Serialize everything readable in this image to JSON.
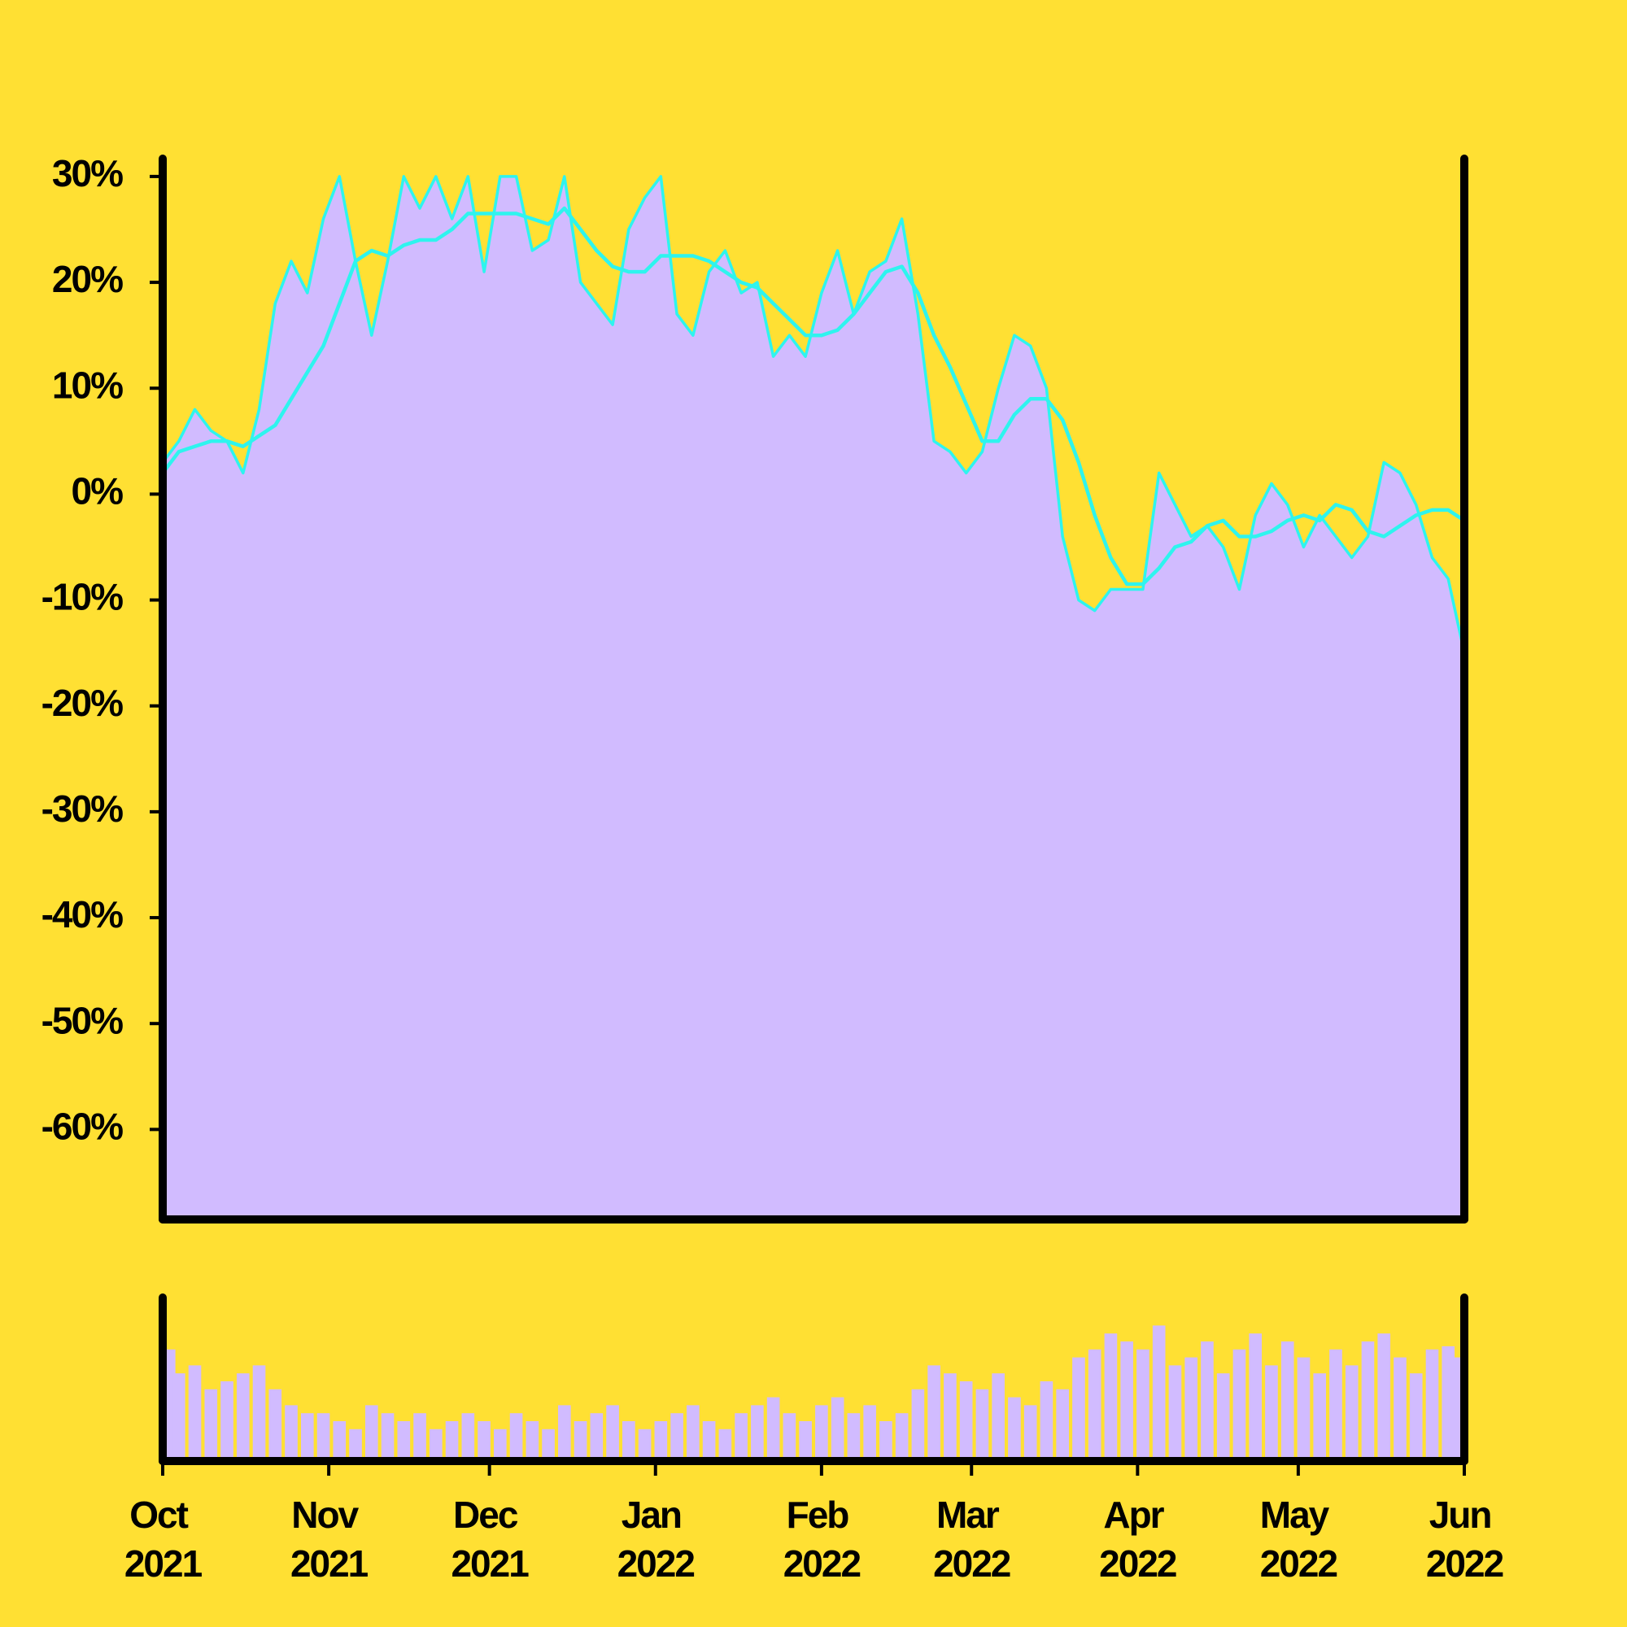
{
  "chart_data": [
    {
      "type": "area",
      "x": [
        0,
        3,
        6,
        9,
        12,
        15,
        18,
        21,
        24,
        27,
        30,
        33,
        36,
        39,
        42,
        45,
        48,
        51,
        54,
        57,
        60,
        63,
        66,
        69,
        72,
        75,
        78,
        81,
        84,
        87,
        90,
        93,
        96,
        99,
        102,
        105,
        108,
        111,
        114,
        117,
        120,
        123,
        126,
        129,
        132,
        135,
        138,
        141,
        144,
        147,
        150,
        153,
        156,
        159,
        162,
        165,
        168,
        171,
        174,
        177,
        180,
        183,
        186,
        189,
        192,
        195,
        198,
        201,
        204,
        207,
        210,
        213,
        216,
        219,
        222,
        225,
        228,
        231,
        234,
        237,
        240,
        243
      ],
      "xlim": [
        0,
        243
      ],
      "ylim": [
        -68.5,
        31.3
      ],
      "yticks": [
        {
          "value": 30,
          "label": "30%"
        },
        {
          "value": 20,
          "label": "20%"
        },
        {
          "value": 10,
          "label": "10%"
        },
        {
          "value": 0,
          "label": "0%"
        },
        {
          "value": -10,
          "label": "-10%"
        },
        {
          "value": -20,
          "label": "-20%"
        },
        {
          "value": -30,
          "label": "-30%"
        },
        {
          "value": -40,
          "label": "-40%"
        },
        {
          "value": -50,
          "label": "-50%"
        },
        {
          "value": -60,
          "label": "-60%"
        }
      ],
      "fill": "#d1bbff",
      "series": [
        {
          "color": "#2ef4ee",
          "values": [
            3,
            5,
            8,
            6,
            5,
            2,
            8,
            18,
            22,
            19,
            26,
            30,
            22,
            15,
            22,
            30,
            27,
            30,
            26,
            30,
            21,
            30,
            30,
            23,
            24,
            30,
            20,
            18,
            16,
            25,
            28,
            30,
            17,
            15,
            21,
            23,
            19,
            20,
            13,
            15,
            13,
            19,
            23,
            17,
            21,
            22,
            26,
            17,
            5,
            4,
            2,
            4,
            10,
            15,
            14,
            10,
            -4,
            -10,
            -11,
            -9,
            -9,
            -9,
            2,
            -1,
            -4,
            -3,
            -5,
            -9,
            -2,
            1,
            -1,
            -5,
            -2,
            -4,
            -6,
            -4,
            3,
            2,
            -1,
            -6,
            -8,
            -15
          ]
        },
        {
          "color": "#2ef4ee",
          "values": [
            2,
            4,
            4.5,
            5,
            5,
            4.5,
            5.5,
            6.5,
            9,
            11.5,
            14,
            18,
            22,
            23,
            22.5,
            23.5,
            24,
            24,
            25,
            26.5,
            26.5,
            26.5,
            26.5,
            26,
            25.5,
            27,
            25,
            23,
            21.5,
            21,
            21,
            22.5,
            22.5,
            22.5,
            22,
            21,
            20,
            19.5,
            18,
            16.5,
            15,
            15,
            15.5,
            17,
            19,
            21,
            21.5,
            19,
            15,
            12,
            8.5,
            5,
            5,
            7.5,
            9,
            9,
            7,
            3,
            -2,
            -6,
            -8.5,
            -8.5,
            -7,
            -5,
            -4.5,
            -3,
            -2.5,
            -4,
            -4,
            -3.5,
            -2.5,
            -2,
            -2.5,
            -1,
            -1.5,
            -3.5,
            -4,
            -3,
            -2,
            -1.5,
            -1.5,
            -2.5
          ]
        }
      ]
    },
    {
      "type": "bar",
      "x": [
        0,
        3,
        6,
        9,
        12,
        15,
        18,
        21,
        24,
        27,
        30,
        33,
        36,
        39,
        42,
        45,
        48,
        51,
        54,
        57,
        60,
        63,
        66,
        69,
        72,
        75,
        78,
        81,
        84,
        87,
        90,
        93,
        96,
        99,
        102,
        105,
        108,
        111,
        114,
        117,
        120,
        123,
        126,
        129,
        132,
        135,
        138,
        141,
        144,
        147,
        150,
        153,
        156,
        159,
        162,
        165,
        168,
        171,
        174,
        177,
        180,
        183,
        186,
        189,
        192,
        195,
        198,
        201,
        204,
        207,
        210,
        213,
        216,
        219,
        222,
        225,
        228,
        231,
        234,
        237,
        240,
        243
      ],
      "xlim": [
        0,
        243
      ],
      "ylim": [
        0,
        100
      ],
      "color": "#d1bbff",
      "values": [
        70,
        55,
        60,
        45,
        50,
        55,
        60,
        45,
        35,
        30,
        30,
        25,
        20,
        35,
        30,
        25,
        30,
        20,
        25,
        30,
        25,
        20,
        30,
        25,
        20,
        35,
        25,
        30,
        35,
        25,
        20,
        25,
        30,
        35,
        25,
        20,
        30,
        35,
        40,
        30,
        25,
        35,
        40,
        30,
        35,
        25,
        30,
        45,
        60,
        55,
        50,
        45,
        55,
        40,
        35,
        50,
        45,
        65,
        70,
        80,
        75,
        70,
        85,
        60,
        65,
        75,
        55,
        70,
        80,
        60,
        75,
        65,
        55,
        70,
        60,
        75,
        80,
        65,
        55,
        70,
        72,
        65
      ],
      "xticks": [
        {
          "value": 0,
          "label": "Oct 2021"
        },
        {
          "value": 31,
          "label": "Nov 2021"
        },
        {
          "value": 61,
          "label": "Dec 2021"
        },
        {
          "value": 92,
          "label": "Jan 2022"
        },
        {
          "value": 123,
          "label": "Feb 2022"
        },
        {
          "value": 151,
          "label": "Mar 2022"
        },
        {
          "value": 182,
          "label": "Apr 2022"
        },
        {
          "value": 212,
          "label": "May 2022"
        },
        {
          "value": 243,
          "label": "Jun 2022"
        }
      ]
    }
  ]
}
